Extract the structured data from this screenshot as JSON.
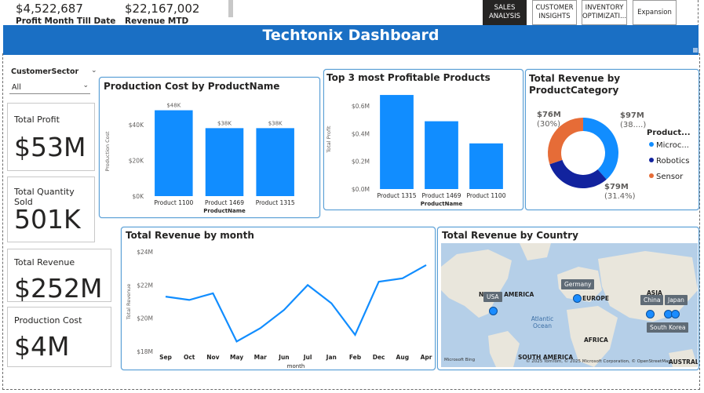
{
  "top_kpis": {
    "profit_mtd_value": "$4,522,687",
    "profit_mtd_label": "Profit Month Till Date",
    "revenue_mtd_value": "$22,167,002",
    "revenue_mtd_label": "Revenue MTD"
  },
  "nav": {
    "sales": "SALES ANALYSIS",
    "customer": "CUSTOMER INSIGHTS",
    "inventory": "INVENTORY OPTIMIZATI...",
    "expansion": "Expansion"
  },
  "banner_title": "Techtonix Dashboard",
  "slicer": {
    "label": "CustomerSector",
    "value": "All"
  },
  "kpis": {
    "total_profit_label": "Total Profit",
    "total_profit_value": "$53M",
    "total_qty_label": "Total Quantity Sold",
    "total_qty_value": "501K",
    "total_revenue_label": "Total Revenue",
    "total_revenue_value": "$252M",
    "production_cost_label": "Production Cost",
    "production_cost_value": "$4M"
  },
  "colors": {
    "bar": "#118dff",
    "banner": "#1a6fc4",
    "donut_blue": "#118dff",
    "donut_navy": "#12239e",
    "donut_orange": "#e66c37"
  },
  "chart_data": [
    {
      "type": "bar",
      "title": "Production Cost by ProductName",
      "categories": [
        "Product 1100",
        "Product 1469",
        "Product 1315"
      ],
      "values": [
        48000,
        38000,
        38000
      ],
      "data_labels": [
        "$48K",
        "$38K",
        "$38K"
      ],
      "xlabel": "ProductName",
      "ylabel": "Production Cost",
      "yticks": [
        "$0K",
        "$20K",
        "$40K"
      ],
      "ylim": [
        0,
        50000
      ]
    },
    {
      "type": "bar",
      "title": "Top 3 most Profitable Products",
      "categories": [
        "Product 1315",
        "Product 1469",
        "Product 1100"
      ],
      "values": [
        0.68,
        0.49,
        0.33
      ],
      "xlabel": "ProductName",
      "ylabel": "Total Profit",
      "yticks": [
        "$0.0M",
        "$0.2M",
        "$0.4M",
        "$0.6M"
      ],
      "ylim": [
        0,
        0.72
      ]
    },
    {
      "type": "pie",
      "title": "Total Revenue by ProductCategory",
      "legend_title": "Product...",
      "categories": [
        "Microc...",
        "Robotics",
        "Sensor"
      ],
      "values": [
        97,
        79,
        76
      ],
      "labels": [
        "$97M (38....)",
        "$79M (31.4%)",
        "$76M (30%)"
      ]
    },
    {
      "type": "line",
      "title": "Total Revenue by month",
      "categories": [
        "Sep",
        "Oct",
        "Nov",
        "May",
        "Mar",
        "Jun",
        "Jul",
        "Jan",
        "Feb",
        "Dec",
        "Aug",
        "Apr"
      ],
      "values": [
        21.3,
        21.1,
        21.5,
        18.6,
        19.4,
        20.5,
        22.0,
        20.9,
        19.0,
        22.2,
        22.4,
        23.2
      ],
      "xlabel": "month",
      "ylabel": "Total Revenue",
      "yticks": [
        "$18M",
        "$20M",
        "$22M",
        "$24M"
      ],
      "ylim": [
        18,
        24
      ]
    }
  ],
  "map": {
    "title": "Total Revenue by Country",
    "continents": [
      "NORTH AMERICA",
      "EUROPE",
      "ASIA",
      "AFRICA",
      "SOUTH AMERICA",
      "AUSTRAL"
    ],
    "ocean": "Atlantic Ocean",
    "bubbles": [
      "USA",
      "Germany",
      "China",
      "Japan",
      "South Korea"
    ],
    "attribution": "© 2025 TomTom, © 2025 Microsoft Corporation, © OpenStreetMap",
    "logo": "Microsoft Bing"
  }
}
